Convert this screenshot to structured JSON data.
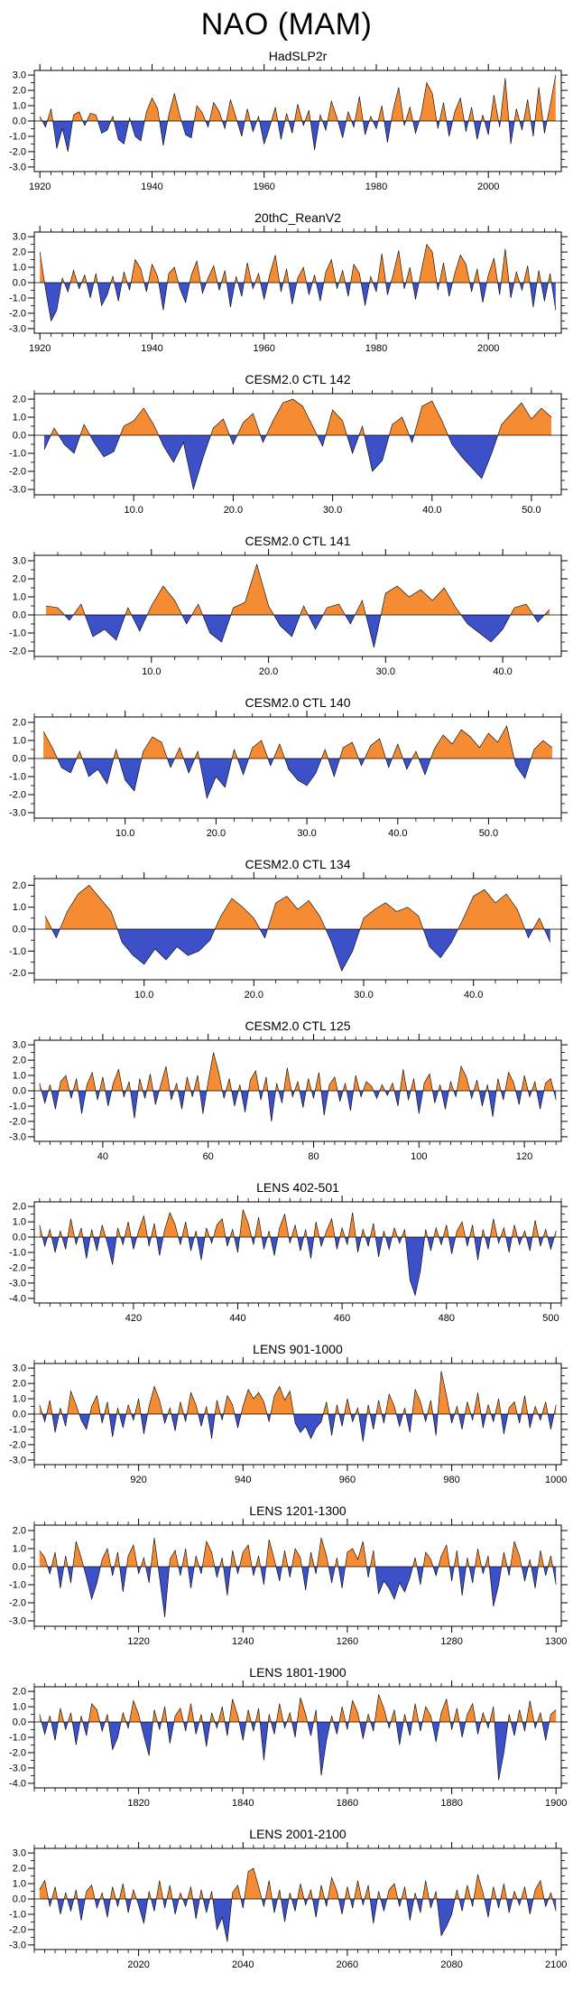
{
  "page": {
    "title": "NAO (MAM)"
  },
  "colors": {
    "positive": "#F58B33",
    "negative": "#3C50C8",
    "axis": "#000000"
  },
  "chart_data": [
    {
      "type": "area",
      "title": "HadSLP2r",
      "xlabel": "",
      "ylabel": "",
      "x_start": 1920,
      "xlim": [
        1919,
        2013
      ],
      "xtick_labels": [
        "1920",
        "1940",
        "1960",
        "1980",
        "2000"
      ],
      "yticks": [
        "3.0",
        "2.0",
        "1.0",
        "0.0",
        "-1.0",
        "-2.0",
        "-3.0"
      ],
      "values": [
        0.3,
        -0.4,
        0.8,
        -1.8,
        -0.5,
        -2.0,
        0.4,
        0.6,
        -0.3,
        0.5,
        0.4,
        -0.8,
        -0.6,
        0.3,
        -1.2,
        -1.5,
        0.2,
        -1.0,
        -1.3,
        0.6,
        1.5,
        0.8,
        -1.6,
        0.4,
        1.8,
        0.3,
        -0.9,
        -1.1,
        1.0,
        0.5,
        -0.4,
        1.2,
        0.6,
        -0.5,
        1.4,
        0.2,
        -1.0,
        0.8,
        -0.7,
        0.3,
        -1.5,
        -0.4,
        0.9,
        -1.2,
        0.5,
        -0.8,
        1.1,
        -0.3,
        0.7,
        -1.9,
        0.4,
        -0.6,
        1.3,
        0.2,
        -1.1,
        0.6,
        -0.4,
        1.6,
        -0.9,
        0.3,
        -0.5,
        1.0,
        -1.4,
        0.7,
        2.2,
        -0.3,
        0.9,
        -0.8,
        0.4,
        2.5,
        1.8,
        -0.5,
        1.2,
        -1.0,
        0.6,
        1.5,
        -0.7,
        0.9,
        -1.2,
        0.4,
        -0.9,
        1.7,
        -0.4,
        2.8,
        -1.5,
        0.8,
        -0.6,
        1.4,
        -1.0,
        2.2,
        -0.8,
        1.0,
        3.0
      ]
    },
    {
      "type": "area",
      "title": "20thC_ReanV2",
      "xlabel": "",
      "ylabel": "",
      "x_start": 1920,
      "xlim": [
        1919,
        2013
      ],
      "xtick_labels": [
        "1920",
        "1940",
        "1960",
        "1980",
        "2000"
      ],
      "yticks": [
        "3.0",
        "2.0",
        "1.0",
        "0.0",
        "-1.0",
        "-2.0",
        "-3.0"
      ],
      "values": [
        2.0,
        -0.4,
        -2.5,
        -1.8,
        0.3,
        -0.6,
        0.8,
        -0.4,
        0.5,
        -1.0,
        0.6,
        -1.5,
        -0.8,
        0.4,
        -1.2,
        0.7,
        -0.5,
        1.5,
        0.9,
        -0.6,
        1.2,
        0.4,
        -1.8,
        0.6,
        1.0,
        -0.4,
        -1.3,
        0.5,
        1.4,
        -0.7,
        0.3,
        1.1,
        -0.5,
        0.8,
        -1.6,
        0.4,
        -0.9,
        1.3,
        -0.4,
        0.6,
        -1.1,
        0.5,
        1.8,
        -0.6,
        0.9,
        -1.4,
        0.3,
        1.0,
        -0.8,
        0.5,
        -1.2,
        0.7,
        1.5,
        -0.4,
        0.8,
        -0.9,
        1.2,
        0.6,
        -1.5,
        0.4,
        -0.6,
        1.9,
        -0.8,
        0.5,
        2.1,
        -0.4,
        1.0,
        -1.1,
        0.7,
        2.5,
        2.0,
        -0.5,
        1.3,
        -0.9,
        0.6,
        1.8,
        1.2,
        -0.6,
        0.9,
        -1.3,
        0.5,
        1.6,
        -0.8,
        2.2,
        -1.0,
        0.7,
        -0.5,
        1.1,
        -1.6,
        0.8,
        -1.2,
        0.6,
        -1.8
      ]
    },
    {
      "type": "area",
      "title": "CESM2.0 CTL 142",
      "xlabel": "",
      "ylabel": "",
      "x_start": 1,
      "xlim": [
        0,
        53
      ],
      "xtick_labels": [
        "10.0",
        "20.0",
        "30.0",
        "40.0",
        "50.0"
      ],
      "yticks": [
        "2.0",
        "1.0",
        "0.0",
        "-1.0",
        "-2.0",
        "-3.0"
      ],
      "values": [
        -0.8,
        0.4,
        -0.5,
        -1.0,
        0.6,
        -0.4,
        -1.2,
        -0.9,
        0.5,
        0.8,
        1.5,
        0.6,
        -0.6,
        -1.5,
        -0.4,
        -3.0,
        -1.2,
        0.4,
        0.9,
        -0.5,
        0.7,
        1.2,
        -0.4,
        0.8,
        1.8,
        2.0,
        1.6,
        0.5,
        -0.6,
        1.4,
        0.8,
        -1.0,
        0.5,
        -2.0,
        -1.4,
        0.6,
        1.0,
        -0.4,
        1.6,
        1.9,
        0.8,
        -0.5,
        -1.2,
        -1.8,
        -2.4,
        -1.0,
        0.6,
        1.2,
        1.8,
        0.9,
        1.5,
        1.0
      ]
    },
    {
      "type": "area",
      "title": "CESM2.0 CTL 141",
      "xlabel": "",
      "ylabel": "",
      "x_start": 1,
      "xlim": [
        0,
        45
      ],
      "xtick_labels": [
        "10.0",
        "20.0",
        "30.0",
        "40.0"
      ],
      "yticks": [
        "3.0",
        "2.0",
        "1.0",
        "0.0",
        "-1.0",
        "-2.0"
      ],
      "values": [
        0.5,
        0.4,
        -0.3,
        0.6,
        -1.2,
        -0.8,
        -1.4,
        0.4,
        -0.9,
        0.5,
        1.6,
        0.8,
        -0.5,
        0.6,
        -1.0,
        -1.5,
        0.4,
        0.7,
        2.8,
        0.5,
        -0.6,
        -1.2,
        0.5,
        -0.8,
        0.4,
        0.6,
        -0.5,
        0.8,
        -1.8,
        1.2,
        1.6,
        1.0,
        1.4,
        0.8,
        1.5,
        0.4,
        -0.5,
        -1.0,
        -1.5,
        -0.8,
        0.4,
        0.6,
        -0.4,
        0.3
      ]
    },
    {
      "type": "area",
      "title": "CESM2.0 CTL 140",
      "xlabel": "",
      "ylabel": "",
      "x_start": 1,
      "xlim": [
        0,
        58
      ],
      "xtick_labels": [
        "10.0",
        "20.0",
        "30.0",
        "40.0",
        "50.0"
      ],
      "yticks": [
        "2.0",
        "1.0",
        "0.0",
        "-1.0",
        "-2.0",
        "-3.0"
      ],
      "values": [
        1.5,
        0.6,
        -0.5,
        -0.8,
        0.4,
        -1.0,
        -0.6,
        -1.4,
        0.5,
        -1.2,
        -1.8,
        0.4,
        1.2,
        0.9,
        -0.5,
        0.6,
        -0.8,
        0.4,
        -2.2,
        -1.0,
        -1.6,
        0.5,
        -0.9,
        0.6,
        1.0,
        -0.4,
        0.8,
        -0.6,
        -1.2,
        -1.5,
        -0.8,
        0.5,
        -1.0,
        0.6,
        0.9,
        -0.4,
        0.7,
        1.1,
        -0.5,
        0.8,
        -0.6,
        0.4,
        -0.9,
        0.5,
        1.3,
        0.8,
        1.6,
        1.2,
        0.6,
        1.4,
        0.9,
        1.8,
        -0.4,
        -1.1,
        0.5,
        1.0,
        0.6
      ]
    },
    {
      "type": "area",
      "title": "CESM2.0 CTL 134",
      "xlabel": "",
      "ylabel": "",
      "x_start": 1,
      "xlim": [
        0,
        48
      ],
      "xtick_labels": [
        "10.0",
        "20.0",
        "30.0",
        "40.0"
      ],
      "yticks": [
        "2.0",
        "1.0",
        "0.0",
        "-1.0",
        "-2.0"
      ],
      "values": [
        0.6,
        -0.4,
        0.8,
        1.6,
        2.0,
        1.4,
        0.8,
        -0.6,
        -1.2,
        -1.6,
        -0.9,
        -1.4,
        -0.8,
        -1.2,
        -1.0,
        -0.5,
        0.6,
        1.4,
        1.0,
        0.5,
        -0.4,
        1.2,
        1.5,
        0.9,
        1.3,
        0.6,
        -0.5,
        -1.9,
        -1.0,
        0.5,
        0.9,
        1.2,
        0.8,
        1.0,
        0.6,
        -0.8,
        -1.3,
        -0.6,
        0.4,
        1.5,
        1.8,
        1.2,
        1.6,
        0.9,
        -0.4,
        0.5,
        -0.6
      ]
    },
    {
      "type": "area",
      "title": "CESM2.0 CTL 125",
      "xlabel": "",
      "ylabel": "",
      "x_start": 28,
      "xlim": [
        27,
        127
      ],
      "xtick_labels": [
        "40",
        "60",
        "80",
        "100",
        "120"
      ],
      "yticks": [
        "3.0",
        "2.0",
        "1.0",
        "0.0",
        "-1.0",
        "-2.0",
        "-3.0"
      ],
      "values": [
        0.5,
        -0.8,
        0.4,
        -1.2,
        0.6,
        1.0,
        -0.5,
        0.8,
        -1.5,
        0.4,
        1.2,
        -0.6,
        0.9,
        -1.0,
        0.5,
        1.4,
        -0.4,
        0.6,
        -1.8,
        0.8,
        -0.5,
        1.1,
        -0.9,
        0.4,
        1.6,
        -0.6,
        0.5,
        -1.2,
        0.9,
        -0.4,
        1.0,
        -1.5,
        0.6,
        2.5,
        1.2,
        -0.5,
        0.8,
        -1.0,
        0.4,
        -1.4,
        0.7,
        1.3,
        -0.6,
        0.9,
        -2.0,
        0.5,
        -0.8,
        1.5,
        -0.4,
        0.6,
        -1.1,
        0.8,
        -0.5,
        1.2,
        -1.6,
        0.4,
        0.9,
        -0.7,
        0.5,
        -1.3,
        1.0,
        -0.4,
        0.6,
        0.3,
        -0.5,
        0.4,
        -0.3,
        0.5,
        -1.0,
        1.4,
        -0.6,
        0.8,
        -1.5,
        0.5,
        1.1,
        -0.8,
        0.4,
        -1.2,
        0.6,
        -0.4,
        1.6,
        0.9,
        -0.5,
        0.7,
        -1.0,
        0.4,
        -1.7,
        0.8,
        -0.6,
        1.2,
        0.5,
        -0.9,
        1.0,
        -0.4,
        0.6,
        -1.2,
        0.5,
        0.8,
        -0.6
      ]
    },
    {
      "type": "area",
      "title": "LENS 402-501",
      "xlabel": "",
      "ylabel": "",
      "x_start": 402,
      "xlim": [
        401,
        502
      ],
      "xtick_labels": [
        "420",
        "440",
        "460",
        "480",
        "500"
      ],
      "yticks": [
        "2.0",
        "1.0",
        "0.0",
        "-1.0",
        "-2.0",
        "-3.0",
        "-4.0"
      ],
      "values": [
        0.8,
        -0.6,
        0.5,
        -1.0,
        0.4,
        -0.8,
        1.2,
        -0.5,
        0.6,
        -1.4,
        0.5,
        -0.9,
        0.8,
        -0.4,
        -1.8,
        0.6,
        -0.5,
        1.0,
        -0.8,
        0.4,
        1.4,
        -0.6,
        0.9,
        -1.2,
        0.5,
        1.6,
        0.8,
        -0.5,
        1.0,
        -0.9,
        0.4,
        -1.5,
        0.6,
        -0.4,
        0.8,
        1.2,
        -0.6,
        0.5,
        -1.0,
        1.8,
        0.9,
        -0.5,
        1.3,
        -0.8,
        0.4,
        -1.2,
        0.6,
        1.5,
        -0.4,
        0.8,
        -0.9,
        0.5,
        -1.4,
        1.0,
        -0.6,
        0.4,
        1.2,
        -0.8,
        0.6,
        -0.5,
        1.6,
        -1.0,
        0.5,
        -0.6,
        0.9,
        -1.3,
        0.4,
        -0.8,
        0.6,
        -0.4,
        0.5,
        -2.8,
        -3.8,
        -2.2,
        0.5,
        -0.9,
        0.6,
        -0.5,
        0.8,
        -1.1,
        0.4,
        1.0,
        -0.6,
        0.8,
        -1.5,
        0.5,
        -0.8,
        1.2,
        -0.4,
        0.6,
        -1.0,
        0.8,
        -0.5,
        0.4,
        -0.9,
        1.1,
        -0.6,
        0.5,
        -0.8,
        0.4
      ]
    },
    {
      "type": "area",
      "title": "LENS 901-1000",
      "xlabel": "",
      "ylabel": "",
      "x_start": 901,
      "xlim": [
        900,
        1001
      ],
      "xtick_labels": [
        "920",
        "940",
        "960",
        "980",
        "1000"
      ],
      "yticks": [
        "3.0",
        "2.0",
        "1.0",
        "0.0",
        "-1.0",
        "-2.0",
        "-3.0"
      ],
      "values": [
        0.6,
        -0.5,
        0.9,
        -1.2,
        0.4,
        -0.8,
        1.5,
        0.6,
        -0.4,
        -1.0,
        0.5,
        1.2,
        -0.6,
        0.8,
        -1.5,
        0.4,
        -0.9,
        0.6,
        -0.4,
        1.0,
        -1.3,
        0.5,
        1.8,
        0.9,
        -0.6,
        0.4,
        -1.1,
        0.8,
        -0.5,
        1.4,
        0.6,
        -0.8,
        0.5,
        -1.6,
        0.9,
        -0.4,
        1.2,
        0.6,
        -0.9,
        0.5,
        1.6,
        1.0,
        1.4,
        0.8,
        -0.5,
        1.2,
        1.8,
        0.9,
        1.5,
        -0.6,
        -1.2,
        -0.8,
        -1.6,
        -0.9,
        -0.5,
        0.8,
        -1.4,
        0.6,
        -0.8,
        1.0,
        -0.5,
        0.4,
        -1.8,
        0.6,
        -1.0,
        0.9,
        -0.6,
        1.3,
        0.5,
        -0.8,
        0.4,
        -1.2,
        1.6,
        0.8,
        -0.5,
        0.9,
        -1.4,
        2.8,
        1.2,
        -0.6,
        0.5,
        -1.0,
        0.8,
        -0.4,
        1.4,
        -0.9,
        0.6,
        -0.5,
        1.0,
        -1.3,
        0.4,
        0.8,
        -0.6,
        1.2,
        -0.9,
        0.5,
        -0.4,
        0.8,
        -1.0,
        0.6
      ]
    },
    {
      "type": "area",
      "title": "LENS 1201-1300",
      "xlabel": "",
      "ylabel": "",
      "x_start": 1201,
      "xlim": [
        1200,
        1301
      ],
      "xtick_labels": [
        "1220",
        "1240",
        "1260",
        "1280",
        "1300"
      ],
      "yticks": [
        "2.0",
        "1.0",
        "0.0",
        "-1.0",
        "-2.0",
        "-3.0"
      ],
      "values": [
        0.9,
        0.5,
        -0.4,
        0.8,
        -1.2,
        0.6,
        -0.9,
        1.4,
        0.5,
        -0.6,
        -1.8,
        -0.9,
        0.4,
        1.0,
        -0.5,
        0.8,
        -1.4,
        0.6,
        1.2,
        -0.4,
        0.5,
        -0.9,
        1.6,
        -0.6,
        -2.8,
        0.4,
        0.9,
        -0.5,
        1.0,
        -1.2,
        0.6,
        -0.4,
        1.4,
        0.8,
        -0.6,
        0.5,
        -1.6,
        0.9,
        -0.4,
        0.8,
        1.2,
        -0.5,
        0.6,
        -1.0,
        1.5,
        0.4,
        -0.8,
        0.9,
        -0.6,
        1.0,
        0.5,
        -1.3,
        0.8,
        -0.4,
        1.6,
        0.6,
        -0.9,
        0.5,
        -1.2,
        0.8,
        1.0,
        0.4,
        1.4,
        -0.6,
        0.9,
        -1.5,
        -0.8,
        -1.2,
        -1.8,
        -0.9,
        -1.4,
        -0.6,
        0.5,
        -1.0,
        0.8,
        0.4,
        -0.5,
        0.6,
        1.2,
        -0.8,
        0.9,
        -1.6,
        0.5,
        -0.9,
        1.0,
        -0.4,
        0.6,
        -2.2,
        -1.0,
        0.8,
        -0.5,
        1.4,
        0.6,
        -0.8,
        0.4,
        -1.2,
        0.9,
        -0.5,
        0.6,
        -1.0
      ]
    },
    {
      "type": "area",
      "title": "LENS 1801-1900",
      "xlabel": "",
      "ylabel": "",
      "x_start": 1801,
      "xlim": [
        1800,
        1901
      ],
      "xtick_labels": [
        "1820",
        "1840",
        "1860",
        "1880",
        "1900"
      ],
      "yticks": [
        "2.0",
        "1.0",
        "0.0",
        "-1.0",
        "-2.0",
        "-3.0",
        "-4.0"
      ],
      "values": [
        0.5,
        -0.8,
        0.4,
        -1.2,
        0.9,
        -0.5,
        0.6,
        -1.5,
        0.4,
        -0.9,
        1.2,
        0.8,
        -0.6,
        0.5,
        -1.8,
        -1.0,
        0.6,
        -0.4,
        1.4,
        0.5,
        -0.9,
        -2.2,
        0.8,
        -0.5,
        1.0,
        -1.4,
        0.4,
        0.9,
        -0.6,
        1.2,
        -0.8,
        0.5,
        -1.6,
        0.6,
        -0.4,
        1.0,
        -0.9,
        1.5,
        0.4,
        -1.2,
        0.8,
        -0.6,
        0.9,
        -2.5,
        0.5,
        -0.8,
        1.2,
        -0.4,
        0.6,
        -1.0,
        1.6,
        0.5,
        -0.9,
        0.8,
        -3.5,
        -1.2,
        0.4,
        -0.8,
        1.0,
        -0.5,
        1.4,
        0.6,
        -1.1,
        0.5,
        -0.6,
        1.8,
        0.9,
        -0.4,
        0.8,
        -1.5,
        0.5,
        -0.9,
        1.2,
        -0.6,
        1.0,
        0.4,
        -1.3,
        0.6,
        1.5,
        -0.5,
        0.9,
        -1.0,
        0.5,
        1.2,
        -0.8,
        0.6,
        -0.4,
        1.0,
        -3.8,
        -2.0,
        0.5,
        -0.9,
        0.8,
        -0.6,
        1.4,
        -0.4,
        0.6,
        -1.2,
        0.5,
        0.8
      ]
    },
    {
      "type": "area",
      "title": "LENS 2001-2100",
      "xlabel": "",
      "ylabel": "",
      "x_start": 2001,
      "xlim": [
        2000,
        2101
      ],
      "xtick_labels": [
        "2020",
        "2040",
        "2060",
        "2080",
        "2100"
      ],
      "yticks": [
        "3.0",
        "2.0",
        "1.0",
        "0.0",
        "-1.0",
        "-2.0",
        "-3.0"
      ],
      "values": [
        0.6,
        1.2,
        -0.5,
        0.8,
        -1.0,
        0.4,
        -0.8,
        0.6,
        -1.4,
        0.5,
        0.9,
        -0.6,
        0.4,
        -1.2,
        0.8,
        -0.5,
        1.0,
        -0.9,
        0.6,
        -0.4,
        -1.6,
        0.5,
        -0.8,
        1.2,
        -0.6,
        0.9,
        -1.0,
        0.4,
        -0.5,
        0.8,
        -1.3,
        0.6,
        -0.9,
        0.5,
        -2.0,
        -1.2,
        -2.8,
        0.4,
        0.9,
        -0.6,
        1.8,
        2.0,
        0.8,
        -0.5,
        1.2,
        -0.9,
        0.6,
        -1.5,
        0.4,
        -0.8,
        1.0,
        -0.4,
        0.6,
        -1.2,
        0.9,
        -0.5,
        1.4,
        0.5,
        -1.0,
        0.8,
        -0.6,
        1.2,
        -0.4,
        0.9,
        -1.6,
        0.5,
        -0.8,
        0.6,
        1.0,
        -0.5,
        0.8,
        -1.4,
        0.4,
        -0.9,
        1.2,
        -0.6,
        0.5,
        -2.4,
        -1.8,
        -1.0,
        0.6,
        -0.8,
        0.9,
        -0.5,
        1.6,
        0.4,
        -1.2,
        0.8,
        -0.6,
        1.0,
        -0.9,
        0.5,
        -0.4,
        0.8,
        -1.0,
        0.6,
        1.2,
        -0.5,
        0.4,
        -0.8
      ]
    }
  ]
}
